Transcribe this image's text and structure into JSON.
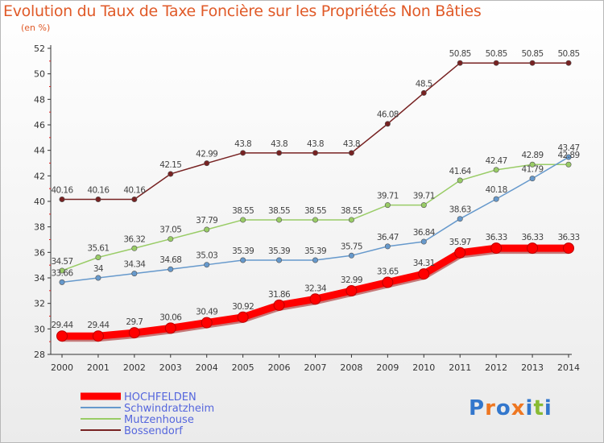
{
  "chart_data": {
    "type": "line",
    "title": "Evolution du Taux de Taxe Foncière sur les Propriétés Non Bâties",
    "ylabel": "(en %)",
    "xlabel": "",
    "x": [
      2000,
      2001,
      2002,
      2003,
      2004,
      2005,
      2006,
      2007,
      2008,
      2009,
      2010,
      2011,
      2012,
      2013,
      2014
    ],
    "ylim": [
      28,
      52
    ],
    "yticks": [
      28,
      30,
      32,
      34,
      36,
      38,
      40,
      42,
      44,
      46,
      48,
      50,
      52
    ],
    "grid": false,
    "legend_position": "bottom-left",
    "series": [
      {
        "name": "HOCHFELDEN",
        "color": "#ff0000",
        "values": [
          29.44,
          29.44,
          29.7,
          30.06,
          30.49,
          30.92,
          31.86,
          32.34,
          32.99,
          33.65,
          34.31,
          35.97,
          36.33,
          36.33,
          36.33
        ]
      },
      {
        "name": "Schwindratzheim",
        "color": "#6699cc",
        "values": [
          33.66,
          34,
          34.34,
          34.68,
          35.03,
          35.39,
          35.39,
          35.39,
          35.75,
          36.47,
          36.84,
          38.63,
          40.18,
          41.79,
          43.47
        ]
      },
      {
        "name": "Mutzenhouse",
        "color": "#99cc66",
        "values": [
          34.57,
          35.61,
          36.32,
          37.05,
          37.79,
          38.55,
          38.55,
          38.55,
          38.55,
          39.71,
          39.71,
          41.64,
          42.47,
          42.89,
          42.89
        ]
      },
      {
        "name": "Bossendorf",
        "color": "#772222",
        "values": [
          40.16,
          40.16,
          40.16,
          42.15,
          42.99,
          43.8,
          43.8,
          43.8,
          43.8,
          46.08,
          48.5,
          50.85,
          50.85,
          50.85,
          50.85
        ]
      }
    ]
  },
  "logo": {
    "text": "Proxiti",
    "letters": [
      "P",
      "r",
      "o",
      "x",
      "i",
      "t",
      "i"
    ],
    "colors": [
      "#3377cc",
      "#ee7722",
      "#3377cc",
      "#ee7722",
      "#3377cc",
      "#88bb33",
      "#3377cc"
    ]
  }
}
